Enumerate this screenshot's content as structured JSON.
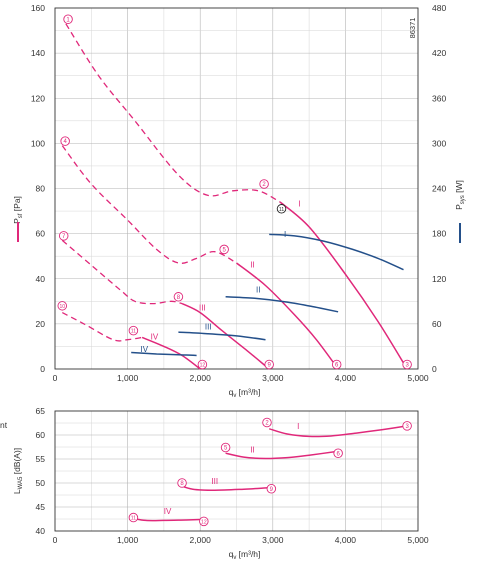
{
  "chart_data": [
    {
      "type": "line",
      "figure_number": "86371",
      "xlabel": "q",
      "xlabel_sub": "v",
      "xlabel_unit": "[m³/h]",
      "xlim": [
        0,
        5000
      ],
      "x_ticks": [
        0,
        1000,
        2000,
        3000,
        4000,
        5000
      ],
      "x_tick_labels": [
        "0",
        "1,000",
        "2,000",
        "3,000",
        "4,000",
        "5,000"
      ],
      "ylabel": "P",
      "ylabel_sub": "sf",
      "ylabel_unit": "[Pa]",
      "ylim": [
        0,
        160
      ],
      "y_ticks": [
        0,
        20,
        40,
        60,
        80,
        100,
        120,
        140,
        160
      ],
      "y2label": "P",
      "y2label_sub": "sys",
      "y2label_unit": "[W]",
      "y2lim": [
        0,
        480
      ],
      "y2_ticks": [
        0,
        60,
        120,
        180,
        240,
        300,
        360,
        420,
        480
      ],
      "grid": true,
      "colors": {
        "pressure": "#e0287a",
        "power": "#24508a",
        "grid": "#b4b4b4",
        "axis": "#333333"
      },
      "pressure_series": [
        {
          "name": "I",
          "x": [
            150,
            600,
            1100,
            1700,
            2100,
            2450,
            2800,
            3100,
            3500,
            4000,
            4450,
            4850
          ],
          "y": [
            153,
            130,
            110,
            86,
            77,
            79,
            79,
            74,
            63,
            42,
            21,
            0
          ],
          "dashed_until_x": 2900
        },
        {
          "name": "II",
          "x": [
            100,
            500,
            1000,
            1400,
            1700,
            1950,
            2200,
            2500,
            2900,
            3300,
            3600,
            3900
          ],
          "y": [
            99,
            82,
            66,
            53,
            47,
            49,
            52,
            47,
            37,
            24,
            13,
            0
          ],
          "dashed_until_x": 2350
        },
        {
          "name": "III",
          "x": [
            100,
            500,
            900,
            1100,
            1350,
            1600,
            1750,
            2000,
            2300,
            2650,
            2950
          ],
          "y": [
            57,
            46,
            35,
            30,
            29,
            30,
            29,
            25,
            17,
            8,
            0
          ],
          "dashed_until_x": 1700
        },
        {
          "name": "IV",
          "x": [
            100,
            400,
            800,
            1000,
            1200,
            1500,
            1750,
            2000
          ],
          "y": [
            25,
            20,
            13,
            13,
            14,
            10,
            6,
            0
          ],
          "dashed_until_x": 1050
        }
      ],
      "power_series": [
        {
          "name": "I",
          "x": [
            2950,
            3300,
            3700,
            4100,
            4450,
            4800
          ],
          "y": [
            179,
            177,
            170,
            159,
            147,
            132
          ]
        },
        {
          "name": "II",
          "x": [
            2350,
            2750,
            3200,
            3600,
            3900
          ],
          "y": [
            96,
            94,
            89,
            82,
            76
          ]
        },
        {
          "name": "III",
          "x": [
            1700,
            2100,
            2500,
            2900
          ],
          "y": [
            49,
            47,
            44,
            39
          ]
        },
        {
          "name": "IV",
          "x": [
            1050,
            1400,
            1700,
            1950
          ],
          "y": [
            22,
            20,
            19,
            18
          ]
        }
      ],
      "curve_labels": [
        {
          "text": "I",
          "x": 3370,
          "y": 72,
          "series": "pressure"
        },
        {
          "text": "II",
          "x": 2720,
          "y": 45,
          "series": "pressure"
        },
        {
          "text": "III",
          "x": 2030,
          "y": 26,
          "series": "pressure"
        },
        {
          "text": "IV",
          "x": 1370,
          "y": 13,
          "series": "pressure"
        },
        {
          "text": "I",
          "x": 3170,
          "y": 58.5,
          "series": "power"
        },
        {
          "text": "II",
          "x": 2800,
          "y": 34,
          "series": "power"
        },
        {
          "text": "III",
          "x": 2110,
          "y": 17.5,
          "series": "power"
        },
        {
          "text": "IV",
          "x": 1230,
          "y": 7.5,
          "series": "power"
        }
      ],
      "point_markers": [
        {
          "label": "1",
          "x": 180,
          "y": 155,
          "color": "pressure"
        },
        {
          "label": "2",
          "x": 2880,
          "y": 82,
          "color": "pressure"
        },
        {
          "label": "11",
          "x": 3120,
          "y": 71,
          "color": "black"
        },
        {
          "label": "3",
          "x": 4850,
          "y": 2,
          "color": "pressure"
        },
        {
          "label": "4",
          "x": 140,
          "y": 101,
          "color": "pressure"
        },
        {
          "label": "5",
          "x": 2330,
          "y": 53,
          "color": "pressure"
        },
        {
          "label": "6",
          "x": 3880,
          "y": 2,
          "color": "pressure"
        },
        {
          "label": "7",
          "x": 120,
          "y": 59,
          "color": "pressure"
        },
        {
          "label": "8",
          "x": 1700,
          "y": 32,
          "color": "pressure"
        },
        {
          "label": "9",
          "x": 2950,
          "y": 2,
          "color": "pressure"
        },
        {
          "label": "10",
          "x": 100,
          "y": 28,
          "color": "pressure"
        },
        {
          "label": "11",
          "x": 1080,
          "y": 17,
          "color": "pressure"
        },
        {
          "label": "12",
          "x": 2030,
          "y": 2,
          "color": "pressure"
        }
      ]
    },
    {
      "type": "line",
      "xlabel": "q",
      "xlabel_sub": "v",
      "xlabel_unit": "[m³/h]",
      "xlim": [
        0,
        5000
      ],
      "x_ticks": [
        0,
        1000,
        2000,
        3000,
        4000,
        5000
      ],
      "x_tick_labels": [
        "0",
        "1,000",
        "2,000",
        "3,000",
        "4,000",
        "5,000"
      ],
      "ylabel": "L",
      "ylabel_sub": "WA5",
      "ylabel_unit": "[dB(A)]",
      "ylim": [
        40,
        65
      ],
      "y_ticks": [
        40,
        45,
        50,
        55,
        60,
        65
      ],
      "side_text": "nt",
      "grid": true,
      "series": [
        {
          "name": "I",
          "x": [
            2950,
            3200,
            3500,
            3800,
            4150,
            4500,
            4850
          ],
          "y": [
            61.3,
            60.2,
            59.7,
            59.8,
            60.4,
            61.1,
            61.9
          ]
        },
        {
          "name": "II",
          "x": [
            2350,
            2600,
            2900,
            3200,
            3500,
            3900
          ],
          "y": [
            56.2,
            55.4,
            55.1,
            55.3,
            55.8,
            56.6
          ]
        },
        {
          "name": "III",
          "x": [
            1700,
            1900,
            2200,
            2600,
            2950
          ],
          "y": [
            49.6,
            48.7,
            48.5,
            48.7,
            49.0
          ]
        },
        {
          "name": "IV",
          "x": [
            1080,
            1250,
            1500,
            1800,
            2000
          ],
          "y": [
            42.6,
            42.2,
            42.2,
            42.3,
            42.4
          ]
        }
      ],
      "curve_labels": [
        {
          "text": "I",
          "x": 3350,
          "y": 61.2
        },
        {
          "text": "II",
          "x": 2720,
          "y": 56.4
        },
        {
          "text": "III",
          "x": 2200,
          "y": 49.8
        },
        {
          "text": "IV",
          "x": 1550,
          "y": 43.5
        }
      ],
      "point_markers": [
        {
          "label": "2",
          "x": 2920,
          "y": 62.6
        },
        {
          "label": "3",
          "x": 4850,
          "y": 61.9
        },
        {
          "label": "5",
          "x": 2350,
          "y": 57.4
        },
        {
          "label": "6",
          "x": 3900,
          "y": 56.2
        },
        {
          "label": "8",
          "x": 1750,
          "y": 50.0
        },
        {
          "label": "9",
          "x": 2980,
          "y": 48.8
        },
        {
          "label": "11",
          "x": 1080,
          "y": 42.8
        },
        {
          "label": "12",
          "x": 2050,
          "y": 42.0
        }
      ]
    }
  ]
}
